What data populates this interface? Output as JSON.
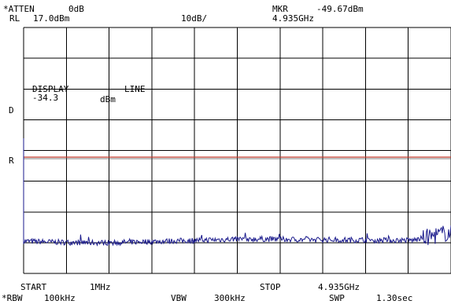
{
  "header": {
    "atten_label": "*ATTEN",
    "atten_value": "0dB",
    "rl_label": "RL",
    "rl_value": "17.0dBm",
    "scale": "10dB/",
    "mkr_label": "MKR",
    "mkr_value": "-49.67dBm",
    "mkr_freq": "4.935GHz"
  },
  "overlay": {
    "display_label": "DISPLAY",
    "line_label": "LINE",
    "display_value": "-34.3",
    "display_unit": "dBm",
    "d_marker": "D",
    "r_marker": "R"
  },
  "footer": {
    "start_label": "START",
    "start_value": "1MHz",
    "stop_label": "STOP",
    "stop_value": "4.935GHz",
    "rbw_label": "*RBW",
    "rbw_value": "100kHz",
    "vbw_label": "VBW",
    "vbw_value": "300kHz",
    "swp_label": "SWP",
    "swp_value": "1.30sec"
  },
  "colors": {
    "grid": "#000000",
    "trace": "#1a1a8c",
    "reference_line": "#c0392b"
  },
  "chart_data": {
    "type": "line",
    "x_start_ghz": 0.001,
    "x_stop_ghz": 4.935,
    "ref_level_dbm": 17.0,
    "db_per_div": 10,
    "divisions_y": 8,
    "divisions_x": 10,
    "display_line_dbm": -34.3,
    "marker": {
      "freq_ghz": 4.935,
      "level_dbm": -49.67
    },
    "trace": {
      "x": [
        0.001,
        0.25,
        0.5,
        0.75,
        1.0,
        1.25,
        1.5,
        1.75,
        2.0,
        2.25,
        2.5,
        2.75,
        3.0,
        3.25,
        3.5,
        3.75,
        4.0,
        4.25,
        4.5,
        4.7,
        4.85,
        4.935
      ],
      "y": [
        -52.5,
        -52.7,
        -52.9,
        -53.0,
        -53.0,
        -52.8,
        -52.6,
        -52.4,
        -52.2,
        -52.0,
        -51.8,
        -51.8,
        -51.9,
        -52.0,
        -52.0,
        -52.1,
        -52.1,
        -52.2,
        -52.2,
        -51.0,
        -50.0,
        -49.67
      ]
    }
  }
}
